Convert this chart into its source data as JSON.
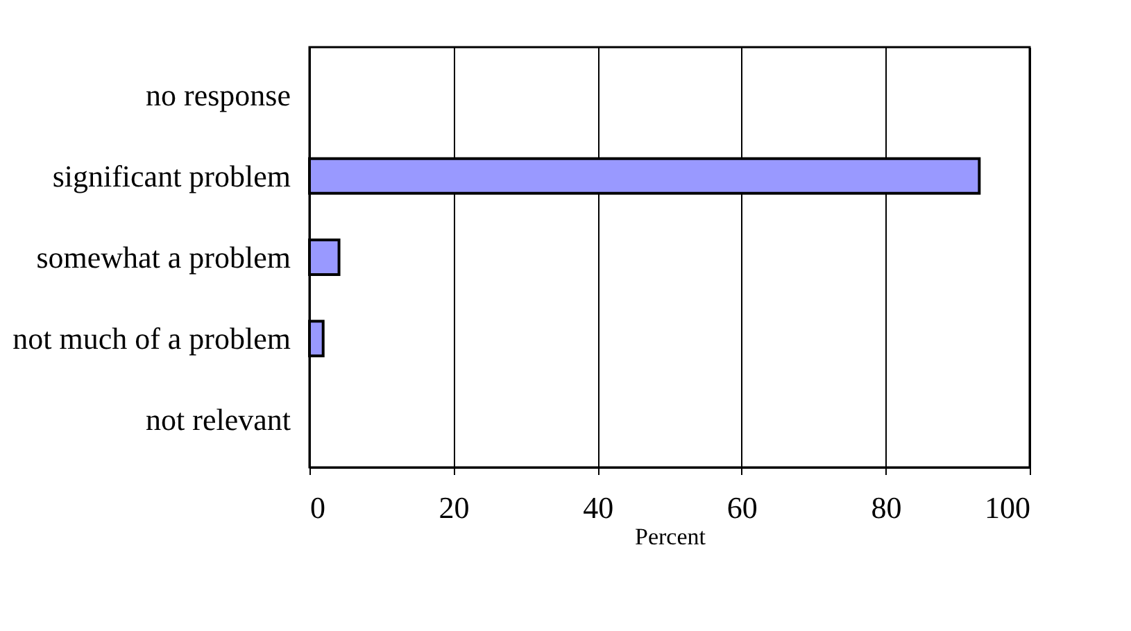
{
  "chart_data": {
    "type": "bar",
    "orientation": "horizontal",
    "xlabel": "Percent",
    "categories": [
      "no response",
      "significant problem",
      "somewhat a problem",
      "not much of a problem",
      "not relevant"
    ],
    "values": [
      0,
      93,
      4.1,
      1.9,
      0
    ],
    "color": "#9999ff",
    "xlim": [
      0,
      100
    ],
    "xticks": [
      0,
      20,
      40,
      60,
      80,
      100
    ],
    "grid": "x"
  }
}
